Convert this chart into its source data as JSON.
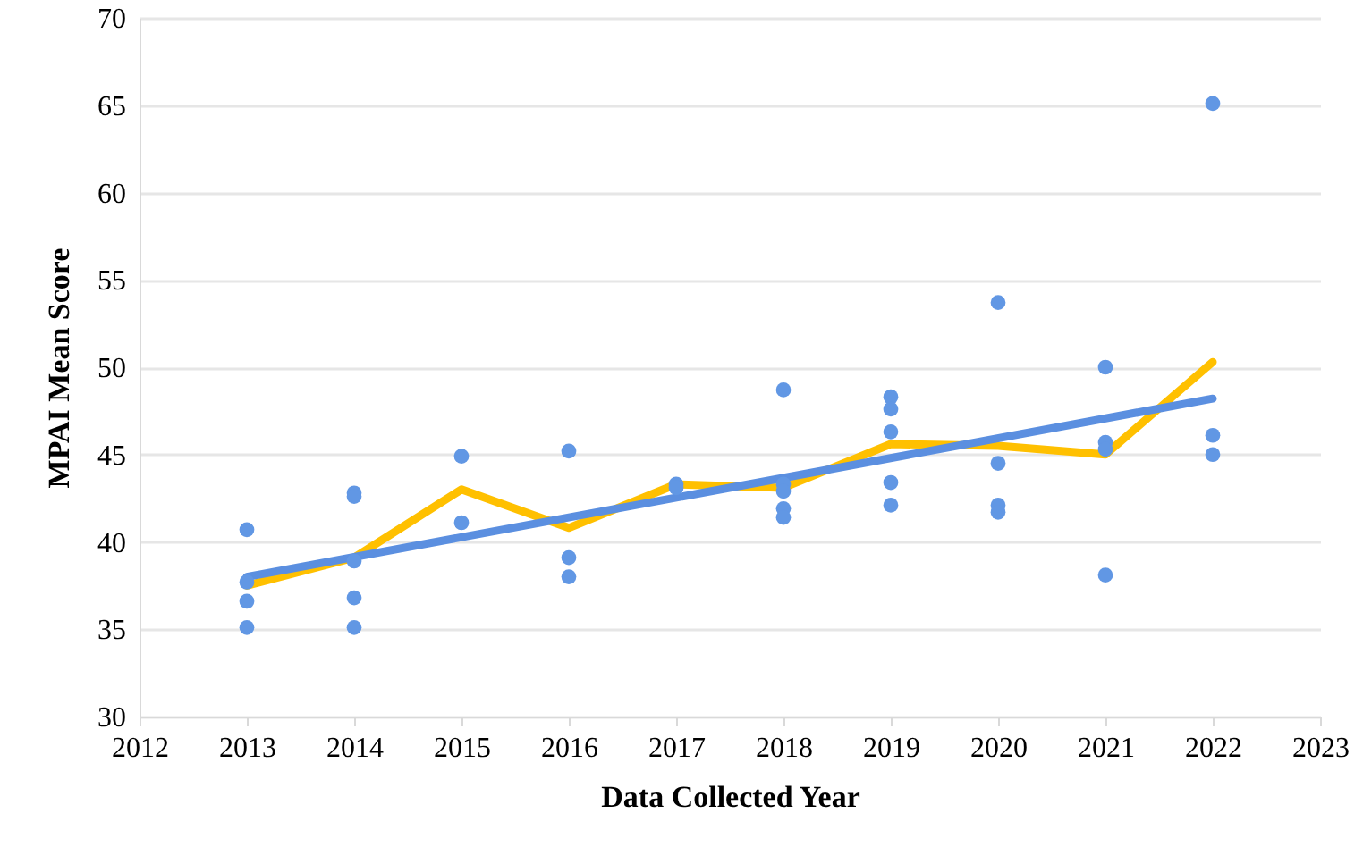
{
  "chart_data": {
    "type": "scatter",
    "xlabel": "Data Collected Year",
    "ylabel": "MPAI  Mean Score",
    "xlim": [
      2012,
      2023
    ],
    "xticks": [
      2012,
      2013,
      2014,
      2015,
      2016,
      2017,
      2018,
      2019,
      2020,
      2021,
      2022,
      2023
    ],
    "ylim": [
      30,
      70
    ],
    "yticks": [
      30,
      35,
      40,
      45,
      50,
      55,
      60,
      65,
      70
    ],
    "grid": "y",
    "series": [
      {
        "type": "scatter",
        "color": "#6197e4",
        "marker": "circle",
        "x": [
          2013,
          2013,
          2013,
          2013,
          2014,
          2014,
          2014,
          2014,
          2014,
          2015,
          2015,
          2016,
          2016,
          2016,
          2017,
          2017,
          2018,
          2018,
          2018,
          2018,
          2018,
          2019,
          2019,
          2019,
          2019,
          2019,
          2020,
          2020,
          2020,
          2020,
          2021,
          2021,
          2021,
          2021,
          2022,
          2022,
          2022
        ],
        "values": [
          40.7,
          37.7,
          36.6,
          35.1,
          42.8,
          42.6,
          38.9,
          36.8,
          35.1,
          44.9,
          41.1,
          45.2,
          39.1,
          38.0,
          43.3,
          43.1,
          48.7,
          43.3,
          42.9,
          41.9,
          41.4,
          48.3,
          47.6,
          46.3,
          43.4,
          42.1,
          53.7,
          44.5,
          42.1,
          41.7,
          50.0,
          45.7,
          45.3,
          38.1,
          65.1,
          46.1,
          45.0
        ]
      },
      {
        "type": "line",
        "color": "#ffc000",
        "x": [
          2013,
          2014,
          2015,
          2016,
          2017,
          2018,
          2019,
          2020,
          2021,
          2022
        ],
        "values": [
          37.5,
          39.1,
          43.0,
          40.8,
          43.3,
          43.1,
          45.6,
          45.5,
          45.0,
          50.3
        ]
      },
      {
        "type": "line",
        "color": "#5b8fe0",
        "x": [
          2013,
          2022
        ],
        "values": [
          38.0,
          48.2
        ]
      }
    ]
  }
}
